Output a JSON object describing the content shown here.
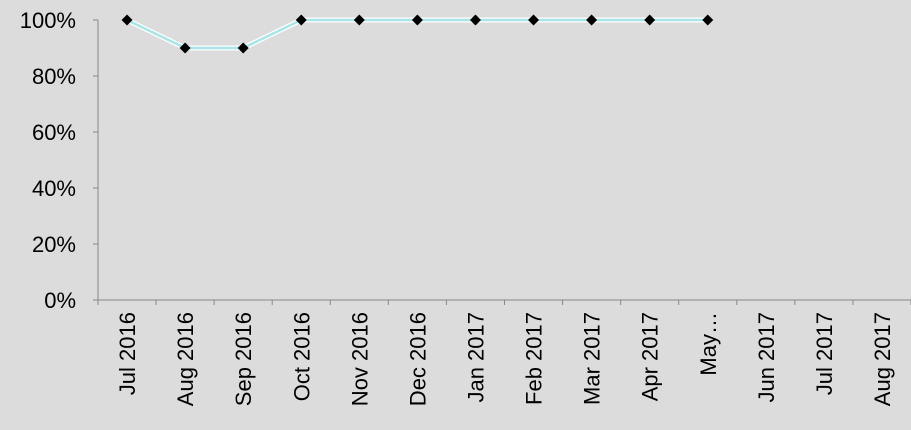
{
  "chart_data": {
    "type": "line",
    "categories": [
      "Jul 2016",
      "Aug 2016",
      "Sep 2016",
      "Oct 2016",
      "Nov 2016",
      "Dec 2016",
      "Jan 2017",
      "Feb 2017",
      "Mar 2017",
      "Apr 2017",
      "May…",
      "Jun 2017",
      "Jul 2017",
      "Aug 2017"
    ],
    "series": [
      {
        "values": [
          100,
          90,
          90,
          100,
          100,
          100,
          100,
          100,
          100,
          100,
          100,
          null,
          null,
          null
        ],
        "color": "#a8e4e8",
        "marker_color": "#000000",
        "marker": "diamond"
      }
    ],
    "yticks": [
      "0%",
      "20%",
      "40%",
      "60%",
      "80%",
      "100%"
    ],
    "ytick_values": [
      0,
      20,
      40,
      60,
      80,
      100
    ],
    "ylim": [
      0,
      100
    ],
    "grid": false,
    "background": "#dcdcdc",
    "axis_color": "#888888"
  }
}
